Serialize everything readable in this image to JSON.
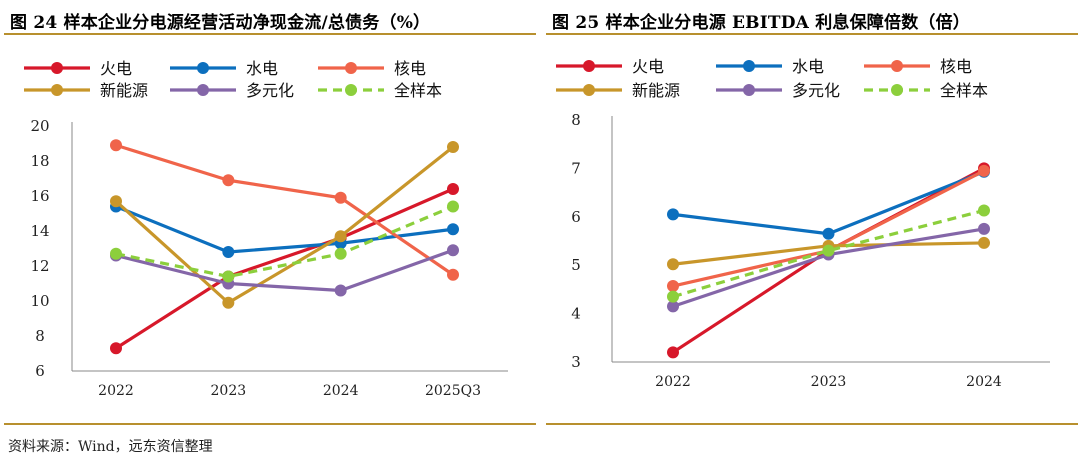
{
  "colors": {
    "火电": "#d7182a",
    "水电": "#0c6fbe",
    "核电": "#f0644a",
    "新能源": "#c8962a",
    "多元化": "#8466a8",
    "全样本": "#8ccf3c",
    "rule": "#b8902e"
  },
  "chart_data": [
    {
      "type": "line",
      "title": "图 24 样本企业分电源经营活动净现金流/总债务（%）",
      "categories": [
        "2022",
        "2023",
        "2024",
        "2025Q3"
      ],
      "ylim": [
        6,
        20
      ],
      "yticks": [
        "6",
        "8",
        "10",
        "12",
        "14",
        "16",
        "18",
        "20"
      ],
      "grid": false,
      "legend": "top",
      "series": [
        {
          "name": "火电",
          "values": [
            7.3,
            11.4,
            13.6,
            16.4
          ],
          "dashed": false
        },
        {
          "name": "水电",
          "values": [
            15.4,
            12.8,
            13.3,
            14.1
          ],
          "dashed": false
        },
        {
          "name": "核电",
          "values": [
            18.9,
            16.9,
            15.9,
            11.5
          ],
          "dashed": false
        },
        {
          "name": "新能源",
          "values": [
            15.7,
            9.9,
            13.7,
            18.8
          ],
          "dashed": false
        },
        {
          "name": "多元化",
          "values": [
            12.6,
            11.0,
            10.6,
            12.9
          ],
          "dashed": false
        },
        {
          "name": "全样本",
          "values": [
            12.7,
            11.4,
            12.7,
            15.4
          ],
          "dashed": true
        }
      ]
    },
    {
      "type": "line",
      "title": "图 25  样本企业分电源 EBITDA 利息保障倍数（倍）",
      "categories": [
        "2022",
        "2023",
        "2024"
      ],
      "ylim": [
        3,
        8
      ],
      "yticks": [
        "3",
        "4",
        "5",
        "6",
        "7",
        "8"
      ],
      "grid": false,
      "legend": "top",
      "series": [
        {
          "name": "火电",
          "values": [
            3.2,
            5.3,
            7.0
          ],
          "dashed": false
        },
        {
          "name": "水电",
          "values": [
            6.05,
            5.65,
            6.93
          ],
          "dashed": false
        },
        {
          "name": "核电",
          "values": [
            4.57,
            5.3,
            6.95
          ],
          "dashed": false
        },
        {
          "name": "新能源",
          "values": [
            5.02,
            5.4,
            5.46
          ],
          "dashed": false
        },
        {
          "name": "多元化",
          "values": [
            4.15,
            5.22,
            5.75
          ],
          "dashed": false
        },
        {
          "name": "全样本",
          "values": [
            4.35,
            5.3,
            6.13
          ],
          "dashed": true
        }
      ]
    }
  ],
  "source": "资料来源：Wind，远东资信整理"
}
